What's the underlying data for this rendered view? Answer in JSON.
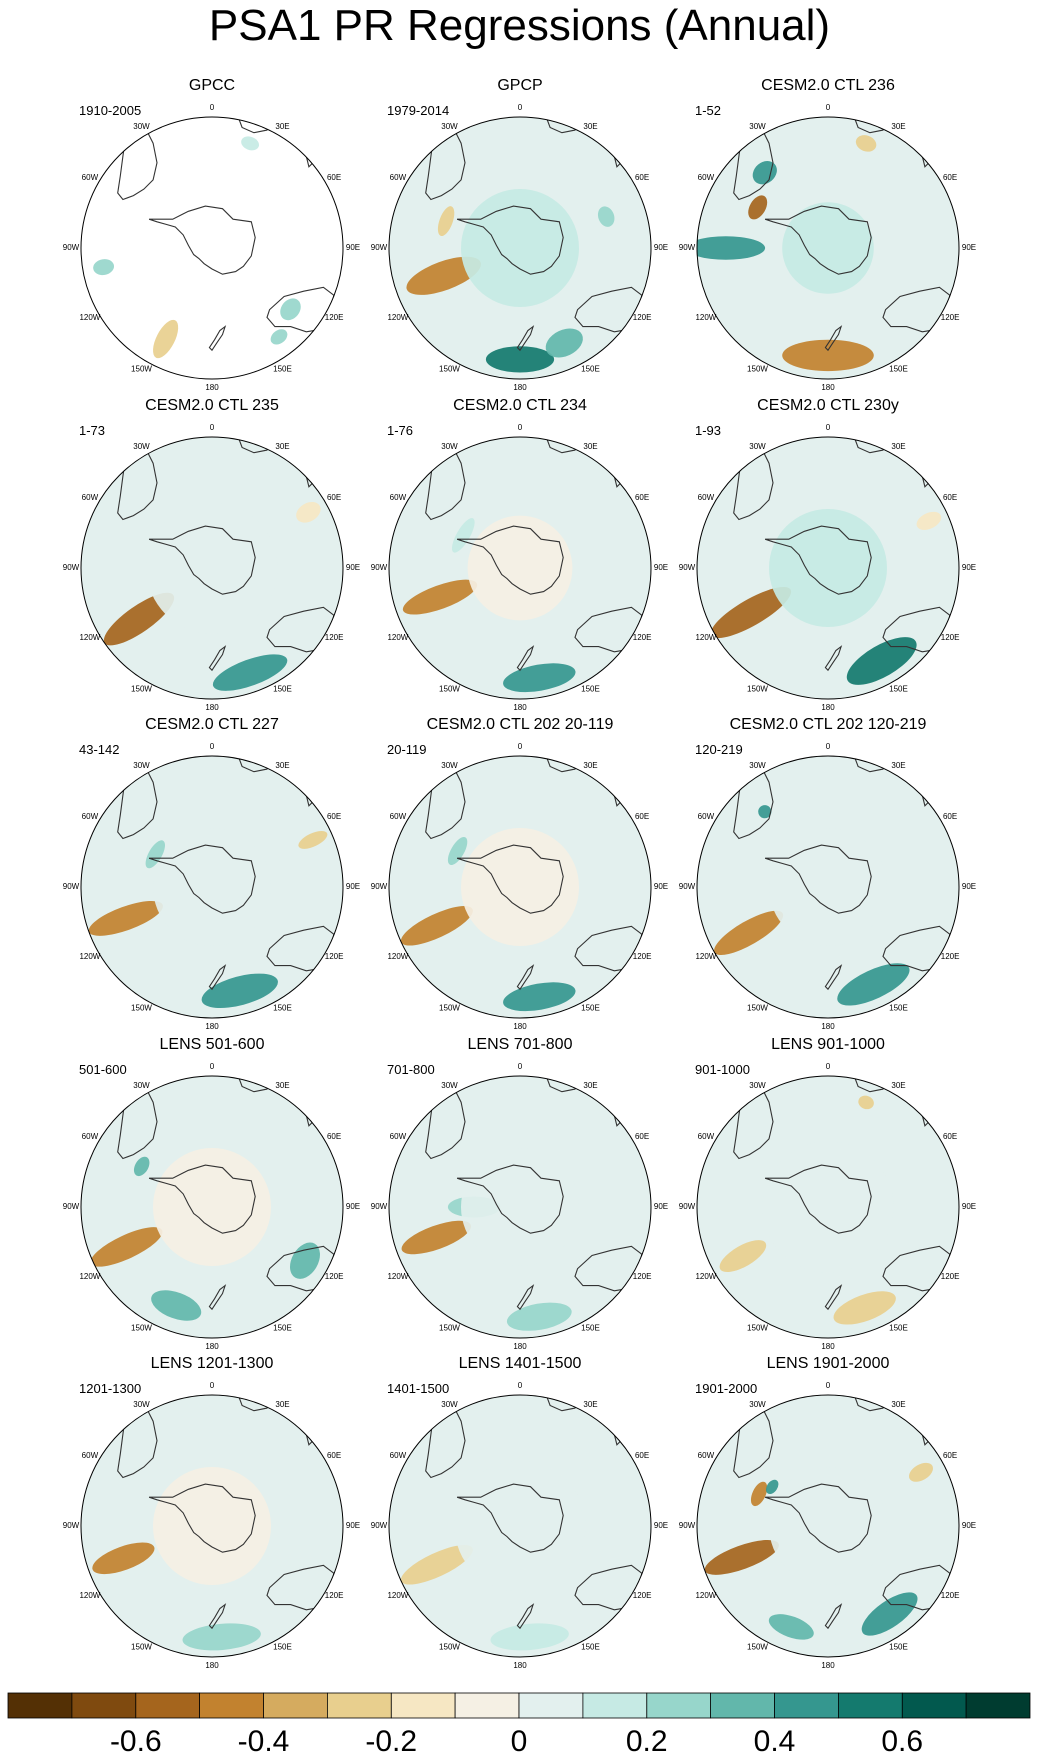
{
  "chart_data": {
    "type": "heatmap",
    "title": "PSA1 PR Regressions (Annual)",
    "projection": "south polar stereographic",
    "longitude_labels": [
      "0",
      "30E",
      "60E",
      "90E",
      "120E",
      "150E",
      "180",
      "150W",
      "120W",
      "90W",
      "60W",
      "30W"
    ],
    "panels": [
      {
        "title": "GPCC",
        "period": "1910-2005",
        "land_only": true,
        "features": [
          {
            "angle": 207,
            "r": 0.78,
            "rx": 0.07,
            "ry": 0.16,
            "value": -0.3
          },
          {
            "angle": 260,
            "r": 0.84,
            "rx": 0.06,
            "ry": 0.08,
            "value": 0.2
          },
          {
            "angle": 128,
            "r": 0.76,
            "rx": 0.09,
            "ry": 0.07,
            "value": 0.25
          },
          {
            "angle": 143,
            "r": 0.85,
            "rx": 0.07,
            "ry": 0.05,
            "value": 0.2
          },
          {
            "angle": 20,
            "r": 0.85,
            "rx": 0.07,
            "ry": 0.05,
            "value": 0.15
          }
        ]
      },
      {
        "title": "GPCP",
        "period": "1979-2014",
        "land_only": false,
        "features": [
          {
            "angle": 250,
            "r": 0.62,
            "rx": 0.11,
            "ry": 0.3,
            "value": -0.5
          },
          {
            "angle": 180,
            "r": 0.85,
            "rx": 0.26,
            "ry": 0.1,
            "value": 0.55
          },
          {
            "angle": 155,
            "r": 0.8,
            "rx": 0.15,
            "ry": 0.1,
            "value": 0.3
          },
          {
            "angle": 290,
            "r": 0.6,
            "rx": 0.12,
            "ry": 0.05,
            "value": -0.3
          },
          {
            "angle": 0,
            "r": 0.0,
            "rx": 0.45,
            "ry": 0.45,
            "value": 0.12
          },
          {
            "angle": 70,
            "r": 0.7,
            "rx": 0.08,
            "ry": 0.06,
            "value": 0.2
          }
        ]
      },
      {
        "title": "CESM2.0 CTL 236",
        "period": "1-52",
        "land_only": false,
        "features": [
          {
            "angle": 270,
            "r": 0.78,
            "rx": 0.09,
            "ry": 0.3,
            "value": 0.45
          },
          {
            "angle": 180,
            "r": 0.82,
            "rx": 0.35,
            "ry": 0.12,
            "value": -0.45
          },
          {
            "angle": 300,
            "r": 0.62,
            "rx": 0.1,
            "ry": 0.06,
            "value": -0.6
          },
          {
            "angle": 320,
            "r": 0.75,
            "rx": 0.1,
            "ry": 0.08,
            "value": 0.45
          },
          {
            "angle": 20,
            "r": 0.85,
            "rx": 0.08,
            "ry": 0.06,
            "value": -0.3
          },
          {
            "angle": 0,
            "r": 0.0,
            "rx": 0.35,
            "ry": 0.35,
            "value": 0.12
          }
        ]
      },
      {
        "title": "CESM2.0 CTL 235",
        "period": "1-73",
        "land_only": false,
        "features": [
          {
            "angle": 235,
            "r": 0.68,
            "rx": 0.1,
            "ry": 0.32,
            "value": -0.6
          },
          {
            "angle": 160,
            "r": 0.85,
            "rx": 0.3,
            "ry": 0.1,
            "value": 0.45
          },
          {
            "angle": 0,
            "r": 0.0,
            "rx": 0.5,
            "ry": 0.5,
            "value": 0.08
          },
          {
            "angle": 60,
            "r": 0.85,
            "rx": 0.07,
            "ry": 0.1,
            "value": -0.2
          }
        ]
      },
      {
        "title": "CESM2.0 CTL 234",
        "period": "1-76",
        "land_only": false,
        "features": [
          {
            "angle": 250,
            "r": 0.65,
            "rx": 0.09,
            "ry": 0.3,
            "value": -0.45
          },
          {
            "angle": 170,
            "r": 0.85,
            "rx": 0.28,
            "ry": 0.1,
            "value": 0.45
          },
          {
            "angle": 0,
            "r": 0.0,
            "rx": 0.4,
            "ry": 0.4,
            "value": -0.05
          },
          {
            "angle": 300,
            "r": 0.5,
            "rx": 0.15,
            "ry": 0.05,
            "value": 0.15
          }
        ]
      },
      {
        "title": "CESM2.0 CTL 230y",
        "period": "1-93",
        "land_only": false,
        "features": [
          {
            "angle": 240,
            "r": 0.68,
            "rx": 0.1,
            "ry": 0.35,
            "value": -0.6
          },
          {
            "angle": 150,
            "r": 0.82,
            "rx": 0.3,
            "ry": 0.12,
            "value": 0.55
          },
          {
            "angle": 0,
            "r": 0.0,
            "rx": 0.45,
            "ry": 0.45,
            "value": 0.1
          },
          {
            "angle": 65,
            "r": 0.85,
            "rx": 0.06,
            "ry": 0.1,
            "value": -0.2
          }
        ]
      },
      {
        "title": "CESM2.0 CTL 227",
        "period": "43-142",
        "land_only": false,
        "features": [
          {
            "angle": 250,
            "r": 0.7,
            "rx": 0.09,
            "ry": 0.3,
            "value": -0.5
          },
          {
            "angle": 165,
            "r": 0.82,
            "rx": 0.3,
            "ry": 0.11,
            "value": 0.45
          },
          {
            "angle": 65,
            "r": 0.85,
            "rx": 0.05,
            "ry": 0.12,
            "value": -0.3
          },
          {
            "angle": 0,
            "r": 0.0,
            "rx": 0.45,
            "ry": 0.45,
            "value": 0.06
          },
          {
            "angle": 300,
            "r": 0.5,
            "rx": 0.12,
            "ry": 0.05,
            "value": 0.25
          }
        ]
      },
      {
        "title": "CESM2.0 CTL 202 20-119",
        "period": "20-119",
        "land_only": false,
        "features": [
          {
            "angle": 245,
            "r": 0.7,
            "rx": 0.09,
            "ry": 0.3,
            "value": -0.45
          },
          {
            "angle": 170,
            "r": 0.85,
            "rx": 0.28,
            "ry": 0.1,
            "value": 0.4
          },
          {
            "angle": 0,
            "r": 0.0,
            "rx": 0.45,
            "ry": 0.45,
            "value": -0.05
          },
          {
            "angle": 300,
            "r": 0.55,
            "rx": 0.12,
            "ry": 0.05,
            "value": 0.2
          }
        ]
      },
      {
        "title": "CESM2.0 CTL 202 120-219",
        "period": "120-219",
        "land_only": false,
        "features": [
          {
            "angle": 240,
            "r": 0.7,
            "rx": 0.09,
            "ry": 0.3,
            "value": -0.5
          },
          {
            "angle": 155,
            "r": 0.82,
            "rx": 0.3,
            "ry": 0.11,
            "value": 0.45
          },
          {
            "angle": 0,
            "r": 0.0,
            "rx": 0.45,
            "ry": 0.45,
            "value": 0.07
          },
          {
            "angle": 320,
            "r": 0.75,
            "rx": 0.05,
            "ry": 0.05,
            "value": 0.4
          }
        ]
      },
      {
        "title": "LENS 501-600",
        "period": "501-600",
        "land_only": false,
        "features": [
          {
            "angle": 245,
            "r": 0.72,
            "rx": 0.09,
            "ry": 0.3,
            "value": -0.45
          },
          {
            "angle": 200,
            "r": 0.8,
            "rx": 0.2,
            "ry": 0.1,
            "value": 0.3
          },
          {
            "angle": 120,
            "r": 0.82,
            "rx": 0.15,
            "ry": 0.1,
            "value": 0.3
          },
          {
            "angle": 0,
            "r": 0.0,
            "rx": 0.45,
            "ry": 0.45,
            "value": -0.05
          },
          {
            "angle": 300,
            "r": 0.62,
            "rx": 0.08,
            "ry": 0.05,
            "value": 0.35
          }
        ]
      },
      {
        "title": "LENS 701-800",
        "period": "701-800",
        "land_only": false,
        "features": [
          {
            "angle": 250,
            "r": 0.68,
            "rx": 0.09,
            "ry": 0.28,
            "value": -0.45
          },
          {
            "angle": 270,
            "r": 0.35,
            "rx": 0.08,
            "ry": 0.2,
            "value": 0.25
          },
          {
            "angle": 170,
            "r": 0.85,
            "rx": 0.25,
            "ry": 0.1,
            "value": 0.2
          },
          {
            "angle": 0,
            "r": 0.0,
            "rx": 0.45,
            "ry": 0.45,
            "value": 0.05
          }
        ]
      },
      {
        "title": "LENS 901-1000",
        "period": "901-1000",
        "land_only": false,
        "features": [
          {
            "angle": 240,
            "r": 0.75,
            "rx": 0.08,
            "ry": 0.2,
            "value": -0.3
          },
          {
            "angle": 160,
            "r": 0.82,
            "rx": 0.25,
            "ry": 0.1,
            "value": -0.25
          },
          {
            "angle": 0,
            "r": 0.0,
            "rx": 0.5,
            "ry": 0.5,
            "value": 0.08
          },
          {
            "angle": 20,
            "r": 0.85,
            "rx": 0.06,
            "ry": 0.05,
            "value": -0.3
          }
        ]
      },
      {
        "title": "LENS 1201-1300",
        "period": "1201-1300",
        "land_only": false,
        "features": [
          {
            "angle": 250,
            "r": 0.72,
            "rx": 0.09,
            "ry": 0.25,
            "value": -0.45
          },
          {
            "angle": 175,
            "r": 0.85,
            "rx": 0.3,
            "ry": 0.1,
            "value": 0.25
          },
          {
            "angle": 0,
            "r": 0.0,
            "rx": 0.45,
            "ry": 0.45,
            "value": -0.05
          }
        ]
      },
      {
        "title": "LENS 1401-1500",
        "period": "1401-1500",
        "land_only": false,
        "features": [
          {
            "angle": 245,
            "r": 0.7,
            "rx": 0.09,
            "ry": 0.3,
            "value": -0.3
          },
          {
            "angle": 175,
            "r": 0.85,
            "rx": 0.3,
            "ry": 0.1,
            "value": 0.15
          },
          {
            "angle": 0,
            "r": 0.0,
            "rx": 0.5,
            "ry": 0.5,
            "value": 0.06
          }
        ]
      },
      {
        "title": "LENS 1901-2000",
        "period": "1901-2000",
        "land_only": false,
        "features": [
          {
            "angle": 250,
            "r": 0.7,
            "rx": 0.09,
            "ry": 0.3,
            "value": -0.6
          },
          {
            "angle": 145,
            "r": 0.82,
            "rx": 0.25,
            "ry": 0.1,
            "value": 0.4
          },
          {
            "angle": 200,
            "r": 0.82,
            "rx": 0.18,
            "ry": 0.08,
            "value": 0.3
          },
          {
            "angle": 295,
            "r": 0.58,
            "rx": 0.1,
            "ry": 0.05,
            "value": -0.5
          },
          {
            "angle": 305,
            "r": 0.52,
            "rx": 0.06,
            "ry": 0.04,
            "value": 0.45
          },
          {
            "angle": 60,
            "r": 0.82,
            "rx": 0.06,
            "ry": 0.1,
            "value": -0.3
          },
          {
            "angle": 0,
            "r": 0.0,
            "rx": 0.45,
            "ry": 0.45,
            "value": 0.06
          }
        ]
      }
    ],
    "colorbar": {
      "levels": [
        -0.7,
        -0.6,
        -0.5,
        -0.4,
        -0.3,
        -0.2,
        -0.1,
        0,
        0.1,
        0.2,
        0.3,
        0.4,
        0.5,
        0.6,
        0.7
      ],
      "colors": [
        "#543005",
        "#7f4a0f",
        "#a5651d",
        "#c2822f",
        "#d5ab5f",
        "#e8cf8e",
        "#f6e7c3",
        "#f5f0e4",
        "#e3f0ee",
        "#c6eae4",
        "#97d6cb",
        "#62b7ab",
        "#35978f",
        "#147a6e",
        "#02594e",
        "#003c30"
      ],
      "tick_labels": [
        "-0.6",
        "-0.4",
        "-0.2",
        "0",
        "0.2",
        "0.4",
        "0.6"
      ],
      "tick_values": [
        -0.6,
        -0.4,
        -0.2,
        0,
        0.2,
        0.4,
        0.6
      ]
    },
    "coastline_color": "#333333"
  }
}
